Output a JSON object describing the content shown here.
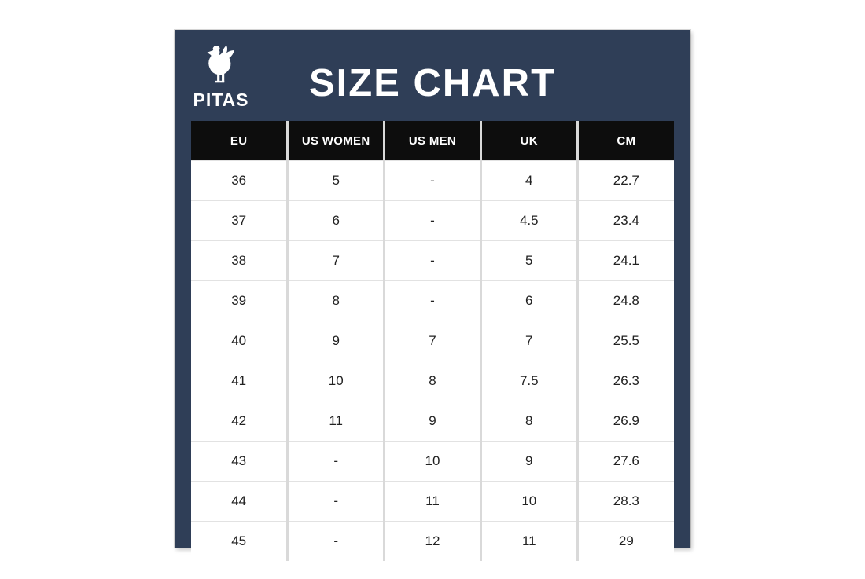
{
  "brand": {
    "name": "PITAS",
    "logo_icon": "rooster-icon"
  },
  "title": "SIZE CHART",
  "colors": {
    "page_bg": "#FFFFFF",
    "panel_bg": "#2F3E57",
    "header_bg": "#0D0D0D",
    "header_text": "#FFFFFF",
    "row_bg": "#FFFFFF",
    "cell_text": "#222222",
    "divider_vertical": "#D9D9D9",
    "divider_horizontal": "#E2E2E2"
  },
  "chart_data": {
    "type": "table",
    "title": "SIZE CHART",
    "columns": [
      "EU",
      "US WOMEN",
      "US MEN",
      "UK",
      "CM"
    ],
    "rows": [
      [
        "36",
        "5",
        "-",
        "4",
        "22.7"
      ],
      [
        "37",
        "6",
        "-",
        "4.5",
        "23.4"
      ],
      [
        "38",
        "7",
        "-",
        "5",
        "24.1"
      ],
      [
        "39",
        "8",
        "-",
        "6",
        "24.8"
      ],
      [
        "40",
        "9",
        "7",
        "7",
        "25.5"
      ],
      [
        "41",
        "10",
        "8",
        "7.5",
        "26.3"
      ],
      [
        "42",
        "11",
        "9",
        "8",
        "26.9"
      ],
      [
        "43",
        "-",
        "10",
        "9",
        "27.6"
      ],
      [
        "44",
        "-",
        "11",
        "10",
        "28.3"
      ],
      [
        "45",
        "-",
        "12",
        "11",
        "29"
      ]
    ]
  }
}
